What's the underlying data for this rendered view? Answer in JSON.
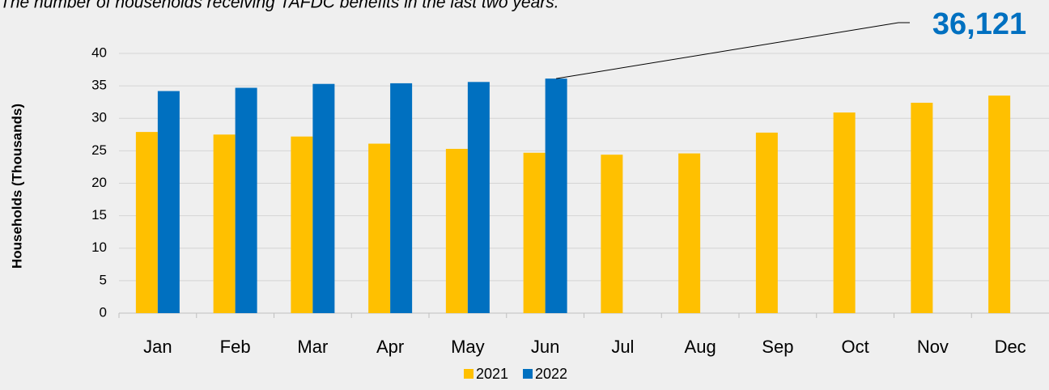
{
  "chart_data": {
    "type": "bar",
    "title": "The number of households receiving TAFDC benefits in the last two years.",
    "y_label": "Households (Thousands)",
    "categories": [
      "Jan",
      "Feb",
      "Mar",
      "Apr",
      "May",
      "Jun",
      "Jul",
      "Aug",
      "Sep",
      "Oct",
      "Nov",
      "Dec"
    ],
    "series": [
      {
        "name": "2021",
        "color": "#ffc000",
        "values": [
          27.9,
          27.5,
          27.2,
          26.1,
          25.3,
          24.7,
          24.4,
          24.6,
          27.8,
          30.9,
          32.4,
          33.5
        ]
      },
      {
        "name": "2022",
        "color": "#0070c0",
        "values": [
          34.2,
          34.7,
          35.3,
          35.4,
          35.6,
          36.121,
          null,
          null,
          null,
          null,
          null,
          null
        ]
      }
    ],
    "annotation": {
      "text": "36,121",
      "series": 1,
      "index": 5
    },
    "ylim": [
      0,
      40
    ],
    "yticks": [
      0,
      5,
      10,
      15,
      20,
      25,
      30,
      35,
      40
    ],
    "grid": true,
    "legend": "bottom"
  }
}
